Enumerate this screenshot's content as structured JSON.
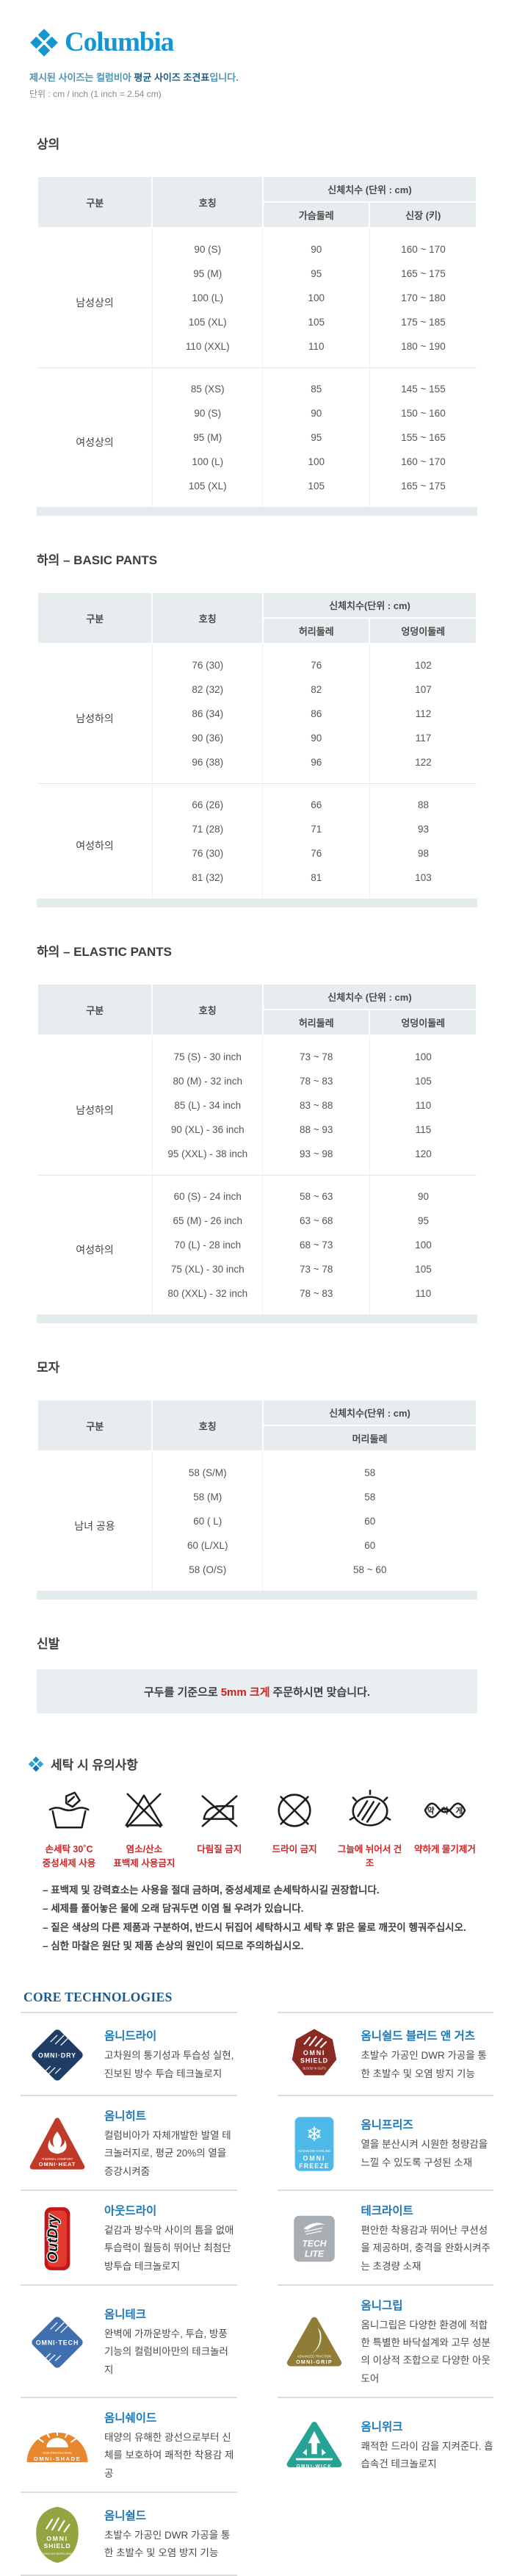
{
  "brand": {
    "name": "Columbia",
    "color": "#1496d3"
  },
  "intro": {
    "pre": "제시된 사이즈는 컬럼비아 ",
    "bold": "평균 사이즈 조견표",
    "post": "입니다.",
    "unit": "단위 : cm / inch (1 inch = 2.54 cm)"
  },
  "tables": [
    {
      "section": "상의",
      "col1": "구분",
      "col2": "호칭",
      "measure_header": "신체치수 (단위 : cm)",
      "sub_cols": [
        "가슴둘레",
        "신장 (키)"
      ],
      "groups": [
        {
          "label": "남성상의",
          "rows": [
            [
              "90 (S)",
              "90",
              "160 ~ 170"
            ],
            [
              "95 (M)",
              "95",
              "165 ~ 175"
            ],
            [
              "100 (L)",
              "100",
              "170 ~ 180"
            ],
            [
              "105 (XL)",
              "105",
              "175 ~ 185"
            ],
            [
              "110 (XXL)",
              "110",
              "180 ~ 190"
            ]
          ]
        },
        {
          "label": "여성상의",
          "rows": [
            [
              "85 (XS)",
              "85",
              "145 ~ 155"
            ],
            [
              "90 (S)",
              "90",
              "150 ~ 160"
            ],
            [
              "95 (M)",
              "95",
              "155 ~ 165"
            ],
            [
              "100 (L)",
              "100",
              "160 ~ 170"
            ],
            [
              "105 (XL)",
              "105",
              "165 ~ 175"
            ]
          ]
        }
      ]
    },
    {
      "section": "하의 – BASIC PANTS",
      "col1": "구분",
      "col2": "호칭",
      "measure_header": "신체치수(단위 : cm)",
      "sub_cols": [
        "허리둘레",
        "엉덩이둘레"
      ],
      "groups": [
        {
          "label": "남성하의",
          "rows": [
            [
              "76 (30)",
              "76",
              "102"
            ],
            [
              "82 (32)",
              "82",
              "107"
            ],
            [
              "86 (34)",
              "86",
              "112"
            ],
            [
              "90 (36)",
              "90",
              "117"
            ],
            [
              "96 (38)",
              "96",
              "122"
            ]
          ]
        },
        {
          "label": "여성하의",
          "rows": [
            [
              "66 (26)",
              "66",
              "88"
            ],
            [
              "71 (28)",
              "71",
              "93"
            ],
            [
              "76 (30)",
              "76",
              "98"
            ],
            [
              "81 (32)",
              "81",
              "103"
            ]
          ]
        }
      ]
    },
    {
      "section": "하의 – ELASTIC PANTS",
      "col1": "구분",
      "col2": "호칭",
      "measure_header": "신체치수 (단위 : cm)",
      "sub_cols": [
        "허리둘레",
        "엉덩이둘레"
      ],
      "groups": [
        {
          "label": "남성하의",
          "rows": [
            [
              "75 (S) - 30 inch",
              "73 ~ 78",
              "100"
            ],
            [
              "80 (M) - 32 inch",
              "78 ~ 83",
              "105"
            ],
            [
              "85 (L) - 34 inch",
              "83 ~ 88",
              "110"
            ],
            [
              "90 (XL) - 36 inch",
              "88 ~ 93",
              "115"
            ],
            [
              "95 (XXL) - 38 inch",
              "93 ~ 98",
              "120"
            ]
          ]
        },
        {
          "label": "여성하의",
          "rows": [
            [
              "60 (S) - 24 inch",
              "58 ~ 63",
              "90"
            ],
            [
              "65 (M) - 26 inch",
              "63 ~ 68",
              "95"
            ],
            [
              "70 (L) - 28 inch",
              "68 ~ 73",
              "100"
            ],
            [
              "75 (XL) - 30 inch",
              "73 ~ 78",
              "105"
            ],
            [
              "80 (XXL) - 32 inch",
              "78 ~ 83",
              "110"
            ]
          ]
        }
      ]
    },
    {
      "section": "모자",
      "col1": "구분",
      "col2": "호칭",
      "measure_header": "신체치수(단위 : cm)",
      "sub_cols": [
        "머리둘레"
      ],
      "groups": [
        {
          "label": "남녀 공용",
          "rows": [
            [
              "58 (S/M)",
              "58"
            ],
            [
              "58 (M)",
              "58"
            ],
            [
              "60 ( L)",
              "60"
            ],
            [
              "60 (L/XL)",
              "60"
            ],
            [
              "58 (O/S)",
              "58 ~ 60"
            ]
          ]
        }
      ]
    }
  ],
  "shoes": {
    "section": "신발",
    "notice_pre": "구두를 기준으로",
    "notice_red": "5mm 크게",
    "notice_post": "주문하시면 맞습니다."
  },
  "laundry": {
    "section": "세탁 시 유의사항",
    "icons": [
      {
        "icon": "handwash-icon",
        "lines": [
          "손세탁 30˚C",
          "중성세제 사용"
        ]
      },
      {
        "icon": "no-bleach-icon",
        "lines": [
          "염소/산소",
          "표백제 사용금지"
        ]
      },
      {
        "icon": "no-iron-icon",
        "lines": [
          "다림질 금지"
        ]
      },
      {
        "icon": "no-dryclean-icon",
        "lines": [
          "드라이 금지"
        ]
      },
      {
        "icon": "shade-dry-icon",
        "lines": [
          "그늘에 뉘어서 건조"
        ]
      },
      {
        "icon": "wring-weak-icon",
        "lines": [
          "약하게 물기제거"
        ],
        "glyph_text": "약하게"
      }
    ],
    "notes": [
      "– 표백제 및 강력효소는 사용을 절대 금하며, 중성세제로 손세탁하시길 권장합니다.",
      "– 세제를 풀어놓은 물에 오래 담궈두면 이염 될 우려가 있습니다.",
      "– 짙은 색상의 다른 제품과 구분하여, 반드시 뒤집어 세탁하시고 세탁 후 맑은 물로 깨끗이 헹궈주십시오.",
      "– 심한 마찰은 원단 및 제품 손상의 원인이 되므로 주의하십시오."
    ]
  },
  "core": {
    "heading": "CORE TECHNOLOGIES",
    "items": [
      {
        "title": "옴니드라이",
        "desc": "고차원의 통기성과 투습성 실현, 진보된 방수 투습 테크놀로지",
        "logo": {
          "type": "diamond",
          "color": "#1e3c64",
          "lines": [
            "OMNI·DRY"
          ]
        }
      },
      {
        "title": "옴니쉴드 블러드 앤 거츠",
        "desc": "초발수 가공인 DWR 가공을 통한 초발수 및 오염 방지 기능",
        "logo": {
          "type": "shield",
          "color": "#8a2a22",
          "lines": [
            "OMNI",
            "SHIELD"
          ],
          "sub": "BLOOD 'N GUTS"
        }
      },
      {
        "title": "옴니히트",
        "desc": "컬럼비아가 자체개발한 발열 테크놀러지로, 평균 20%의 열을 증강시켜줌",
        "logo": {
          "type": "triangle-flame",
          "color": "#bf3a28",
          "lines": [
            "OMNI·HEAT"
          ],
          "sub": "THERMAL COMFORT"
        }
      },
      {
        "title": "옴니프리즈",
        "desc": "열을 분산시켜 시원한 청량감을 느낄 수 있도록 구성된 소재",
        "logo": {
          "type": "square-snow",
          "color": "#4cb9e8",
          "lines": [
            "OMNI",
            "FREEZE"
          ],
          "sub": "ADVANCED COOLING"
        }
      },
      {
        "title": "아웃드라이",
        "desc": "겉감과 방수막 사이의 틈을 없애 투습력이 월등히 뛰어난 최첨단 방투습 테크놀로지",
        "logo": {
          "type": "vpill",
          "color": "#c41818",
          "lines": [
            "OutDry"
          ]
        }
      },
      {
        "title": "테크라이트",
        "desc": "편안한 착용감과 뛰어난 쿠션성을 제공하며, 충격을 완화시켜주는 초경량 소재",
        "logo": {
          "type": "square-lite",
          "color": "#a9aeb2",
          "lines": [
            "TECH",
            "LITE"
          ]
        }
      },
      {
        "title": "옴니테크",
        "desc": "완벽에 가까운방수, 투습, 방풍 기능의 컬럼비아만의 테크놀러지",
        "logo": {
          "type": "diamond",
          "color": "#3f6fae",
          "lines": [
            "OMNI·TECH"
          ]
        }
      },
      {
        "title": "옴니그립",
        "desc": "옴니그립은 다양한 환경에 적합한 특별한 바닥설계와 고무 성분의 이상적 조합으로 다양한 아웃도어",
        "logo": {
          "type": "tri-round",
          "color": "#8f7c35",
          "lines": [
            "OMNI-GRIP"
          ],
          "sub": "ADVANCED TRACTION"
        }
      },
      {
        "title": "옴니쉐이드",
        "desc": "태양의 유해한 광선으로부터 신체를 보호하여 쾌적한 착용감 제공",
        "logo": {
          "type": "halfsun",
          "color": "#e8872e",
          "lines": [
            "OMNI-SHADE"
          ],
          "sub": "SUN PROTECTION"
        }
      },
      {
        "title": "옴니위크",
        "desc": "쾌적한 드라이 감을 지켜준다. 흡습속건 테크놀로지",
        "logo": {
          "type": "tri-wick",
          "color": "#27a396",
          "lines": [
            "OMNI-WICK"
          ]
        }
      },
      {
        "title": "옴니쉴드",
        "desc": "초발수 가공인 DWR 가공을 통한 초발수 및 오염 방지 기능",
        "logo": {
          "type": "leaf",
          "color": "#93a440",
          "lines": [
            "OMNI",
            "SHIELD"
          ],
          "sub": "ADVANCED REPELLENCY"
        }
      }
    ]
  }
}
